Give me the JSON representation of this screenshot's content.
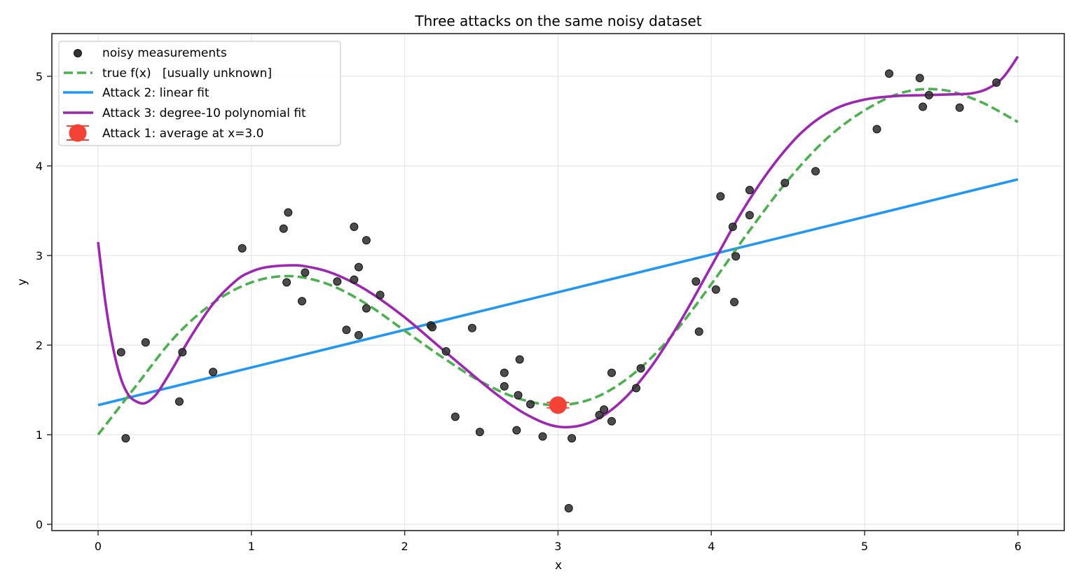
{
  "chart_data": {
    "type": "scatter",
    "title": "Three attacks on the same noisy dataset",
    "xlabel": "x",
    "ylabel": "y",
    "xlim": [
      -0.3,
      6.3
    ],
    "ylim": [
      -0.08,
      5.45
    ],
    "xticks": [
      0,
      1,
      2,
      3,
      4,
      5,
      6
    ],
    "yticks": [
      0,
      1,
      2,
      3,
      4,
      5
    ],
    "grid": true,
    "legend_position": "upper left",
    "legend": [
      {
        "label": "noisy measurements",
        "kind": "marker",
        "color": "#333333"
      },
      {
        "label": "true f(x)   [usually unknown]",
        "kind": "dashed",
        "color": "#4caf50"
      },
      {
        "label": "Attack 2: linear fit",
        "kind": "line",
        "color": "#2196f3"
      },
      {
        "label": "Attack 3: degree-10 polynomial fit",
        "kind": "line",
        "color": "#9c27b0"
      },
      {
        "label": "Attack 1: average at x=3.0",
        "kind": "errorbar",
        "color": "#f44336"
      }
    ],
    "series": [
      {
        "name": "noisy measurements",
        "type": "scatter",
        "color": "#333333",
        "x": [
          0.15,
          0.18,
          0.31,
          0.53,
          0.55,
          0.75,
          0.94,
          1.21,
          1.23,
          1.24,
          1.33,
          1.35,
          1.56,
          1.62,
          1.67,
          1.67,
          1.7,
          1.7,
          1.75,
          1.75,
          1.84,
          2.17,
          2.18,
          2.27,
          2.33,
          2.44,
          2.49,
          2.65,
          2.65,
          2.73,
          2.74,
          2.75,
          2.82,
          2.9,
          3.07,
          3.09,
          3.27,
          3.3,
          3.35,
          3.35,
          3.51,
          3.54,
          3.9,
          3.92,
          4.03,
          4.06,
          4.14,
          4.15,
          4.16,
          4.25,
          4.25,
          4.48,
          4.68,
          5.08,
          5.16,
          5.36,
          5.38,
          5.42,
          5.62,
          5.86
        ],
        "y": [
          1.92,
          0.96,
          2.03,
          1.37,
          1.92,
          1.7,
          3.08,
          3.3,
          2.7,
          3.48,
          2.49,
          2.81,
          2.71,
          2.17,
          2.73,
          3.32,
          2.87,
          2.11,
          2.41,
          3.17,
          2.56,
          2.22,
          2.2,
          1.93,
          1.2,
          2.19,
          1.03,
          1.69,
          1.54,
          1.05,
          1.44,
          1.84,
          1.34,
          0.98,
          0.18,
          0.96,
          1.22,
          1.28,
          1.15,
          1.69,
          1.52,
          1.74,
          2.71,
          2.15,
          2.62,
          3.66,
          3.32,
          2.48,
          2.99,
          3.45,
          3.73,
          3.81,
          3.94,
          4.41,
          5.03,
          4.98,
          4.66,
          4.79,
          4.65,
          4.93
        ]
      },
      {
        "name": "true f(x)",
        "type": "line",
        "style": "dashed",
        "color": "#4caf50",
        "x": [
          0,
          0.25,
          0.5,
          0.75,
          1.0,
          1.25,
          1.5,
          1.75,
          2.0,
          2.25,
          2.5,
          2.75,
          3.0,
          3.25,
          3.5,
          3.75,
          4.0,
          4.25,
          4.5,
          4.75,
          5.0,
          5.25,
          5.5,
          5.75,
          6.0
        ],
        "y": [
          1.0,
          1.55,
          2.09,
          2.47,
          2.7,
          2.77,
          2.68,
          2.46,
          2.16,
          1.86,
          1.59,
          1.4,
          1.33,
          1.42,
          1.69,
          2.12,
          2.68,
          3.28,
          3.84,
          4.3,
          4.62,
          4.82,
          4.85,
          4.72,
          4.49
        ]
      },
      {
        "name": "Attack 2: linear fit",
        "type": "line",
        "color": "#2196f3",
        "x": [
          0,
          6
        ],
        "y": [
          1.33,
          3.85
        ]
      },
      {
        "name": "Attack 3: degree-10 polynomial fit",
        "type": "line",
        "color": "#9c27b0",
        "x": [
          0,
          0.05,
          0.1,
          0.15,
          0.2,
          0.25,
          0.3,
          0.35,
          0.4,
          0.5,
          0.6,
          0.75,
          0.9,
          1.0,
          1.1,
          1.25,
          1.35,
          1.5,
          1.65,
          1.8,
          2.0,
          2.2,
          2.4,
          2.6,
          2.8,
          3.0,
          3.2,
          3.4,
          3.6,
          3.8,
          4.0,
          4.2,
          4.4,
          4.6,
          4.8,
          5.0,
          5.2,
          5.4,
          5.6,
          5.7,
          5.8,
          5.9,
          6.0
        ],
        "y": [
          3.15,
          2.45,
          1.95,
          1.62,
          1.44,
          1.37,
          1.35,
          1.4,
          1.5,
          1.78,
          2.08,
          2.46,
          2.72,
          2.82,
          2.87,
          2.89,
          2.88,
          2.82,
          2.71,
          2.56,
          2.31,
          2.02,
          1.73,
          1.45,
          1.22,
          1.09,
          1.13,
          1.35,
          1.74,
          2.27,
          2.88,
          3.49,
          4.0,
          4.39,
          4.63,
          4.74,
          4.78,
          4.79,
          4.8,
          4.81,
          4.86,
          4.98,
          5.22
        ]
      },
      {
        "name": "Attack 1: average at x=3.0",
        "type": "errorbar",
        "color": "#f44336",
        "x": [
          3.0
        ],
        "y": [
          1.33
        ],
        "yerr": [
          0.03
        ]
      }
    ]
  }
}
